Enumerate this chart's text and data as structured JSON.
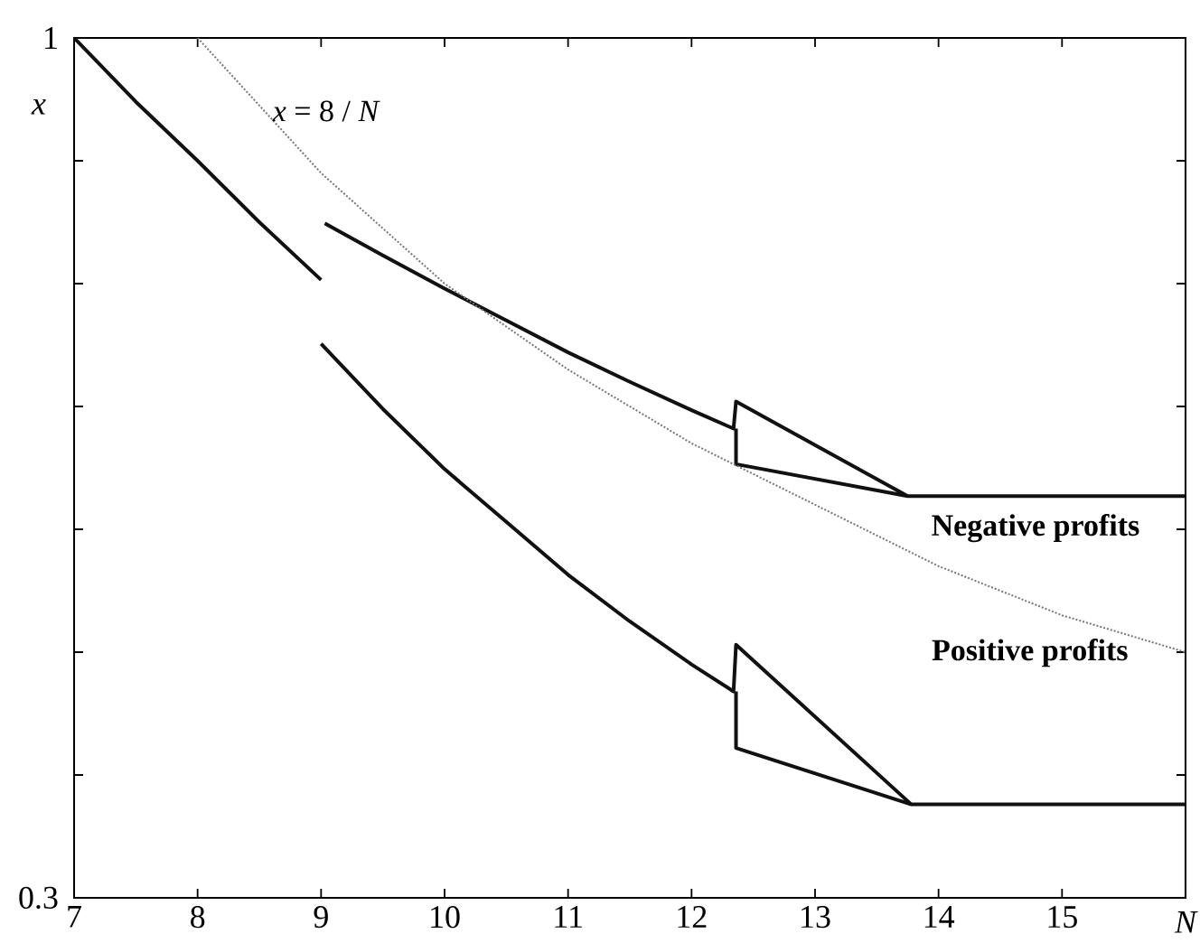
{
  "chart_data": {
    "type": "line",
    "xlabel": "N",
    "ylabel": "x",
    "xlim": [
      7,
      16
    ],
    "ylim": [
      0.3,
      1
    ],
    "xticks": [
      7,
      8,
      9,
      10,
      11,
      12,
      13,
      14,
      15,
      {
        "value": 16,
        "label": null
      }
    ],
    "yticks": [
      0.3,
      {
        "value": 0.4,
        "label": null
      },
      {
        "value": 0.5,
        "label": null
      },
      {
        "value": 0.6,
        "label": null
      },
      {
        "value": 0.7,
        "label": null
      },
      {
        "value": 0.8,
        "label": null
      },
      {
        "value": 0.9,
        "label": null
      },
      1
    ],
    "series": [
      {
        "color": "#111111",
        "line_style": "solid",
        "x": [
          7,
          7.5,
          8,
          8.5,
          9,
          null,
          9,
          9.5,
          10,
          10.5,
          11,
          11.5,
          12,
          12.34,
          12.36,
          13.78,
          16,
          null,
          12.36,
          12.36,
          13.78
        ],
        "values": [
          1,
          0.948,
          0.9,
          0.85,
          0.803,
          null,
          0.751,
          0.698,
          0.649,
          0.606,
          0.563,
          0.525,
          0.49,
          0.468,
          0.506,
          0.376,
          0.376,
          null,
          0.468,
          0.422,
          0.376
        ]
      },
      {
        "color": "#111111",
        "line_style": "solid",
        "x": [
          9.03,
          9.5,
          10,
          10.5,
          11,
          11.5,
          12,
          12.34,
          12.36,
          13.75,
          16,
          null,
          12.36,
          12.36,
          13.75
        ],
        "values": [
          0.849,
          0.823,
          0.796,
          0.77,
          0.744,
          0.72,
          0.697,
          0.682,
          0.704,
          0.627,
          0.627,
          null,
          0.682,
          0.653,
          0.627
        ]
      },
      {
        "color": "#777777",
        "line_style": "dotted",
        "x": [
          8,
          9,
          10,
          11,
          12,
          13,
          14,
          15,
          16
        ],
        "values": [
          1,
          0.89,
          0.8,
          0.73,
          0.67,
          0.62,
          0.57,
          0.53,
          0.5
        ]
      }
    ],
    "annotations": [
      "*x* = 8 / *N*",
      "**Negative profits**",
      "**Positive profits**"
    ]
  }
}
